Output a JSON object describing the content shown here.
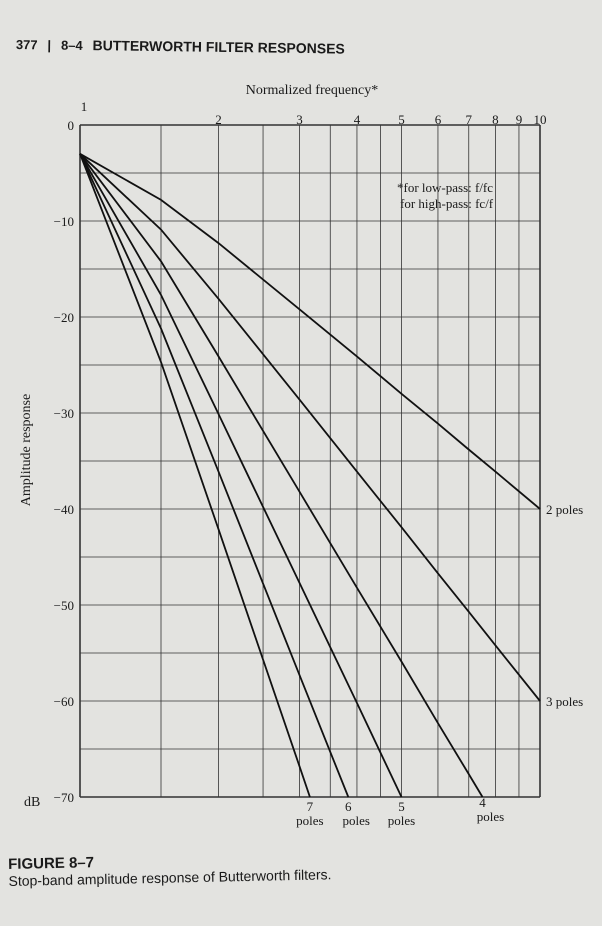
{
  "header": {
    "page_number": "377",
    "section": "8–4",
    "title": "BUTTERWORTH FILTER RESPONSES"
  },
  "caption": {
    "figure_label": "FIGURE 8–7",
    "text": "Stop-band amplitude response of Butterworth filters."
  },
  "chart_data": {
    "type": "line",
    "title": "",
    "xlabel": "Normalized frequency*",
    "ylabel": "Amplitude response",
    "y_unit_label": "dB",
    "x_scale": "log",
    "xlim": [
      1,
      10
    ],
    "ylim": [
      -70,
      0
    ],
    "grid": true,
    "x_gridlines": [
      1,
      1.5,
      2,
      2.5,
      3,
      3.5,
      4,
      4.5,
      5,
      6,
      7,
      8,
      9,
      10
    ],
    "x_ticks": [
      {
        "value": 1,
        "label": "1"
      },
      {
        "value": 2,
        "label": "2"
      },
      {
        "value": 3,
        "label": "3"
      },
      {
        "value": 4,
        "label": "4"
      },
      {
        "value": 5,
        "label": "5"
      },
      {
        "value": 6,
        "label": "6"
      },
      {
        "value": 7,
        "label": "7"
      },
      {
        "value": 8,
        "label": "8"
      },
      {
        "value": 9,
        "label": "9"
      },
      {
        "value": 10,
        "label": "10"
      }
    ],
    "y_gridlines": [
      0,
      -5,
      -10,
      -15,
      -20,
      -25,
      -30,
      -35,
      -40,
      -45,
      -50,
      -55,
      -60,
      -65,
      -70
    ],
    "y_ticks": [
      {
        "value": 0,
        "label": "0"
      },
      {
        "value": -10,
        "label": "−10"
      },
      {
        "value": -20,
        "label": "−20"
      },
      {
        "value": -30,
        "label": "−30"
      },
      {
        "value": -40,
        "label": "−40"
      },
      {
        "value": -50,
        "label": "−50"
      },
      {
        "value": -60,
        "label": "−60"
      },
      {
        "value": -70,
        "label": "−70"
      }
    ],
    "footnote": {
      "line1": "*for low-pass: f/fc",
      "line2": "for high-pass: fc/f"
    },
    "series": [
      {
        "name": "2 poles",
        "number": "2",
        "unit": "poles",
        "x": [
          1,
          1.5,
          2,
          3,
          4,
          5,
          6,
          7,
          8,
          10
        ],
        "y": [
          -3.0,
          -7.8,
          -12.3,
          -19.2,
          -24.1,
          -28.0,
          -31.1,
          -33.8,
          -36.1,
          -40.0
        ]
      },
      {
        "name": "3 poles",
        "number": "3",
        "unit": "poles",
        "x": [
          1,
          1.5,
          2,
          3,
          4,
          5,
          6,
          7,
          8,
          10
        ],
        "y": [
          -3.0,
          -10.9,
          -18.1,
          -28.6,
          -36.1,
          -41.9,
          -46.7,
          -50.7,
          -54.2,
          -60.0
        ]
      },
      {
        "name": "4 poles",
        "number": "4",
        "unit": "poles",
        "x": [
          1,
          1.5,
          2,
          3,
          4,
          5,
          6,
          7,
          7.5
        ],
        "y": [
          -3.0,
          -14.2,
          -24.1,
          -38.2,
          -48.2,
          -55.9,
          -62.3,
          -67.6,
          -70.0
        ]
      },
      {
        "name": "5 poles",
        "number": "5",
        "unit": "poles",
        "x": [
          1,
          1.5,
          2,
          3,
          4,
          5
        ],
        "y": [
          -3.0,
          -17.7,
          -30.1,
          -47.7,
          -60.2,
          -70.0
        ]
      },
      {
        "name": "6 poles",
        "number": "6",
        "unit": "poles",
        "x": [
          1,
          1.5,
          2,
          3,
          3.83
        ],
        "y": [
          -3.0,
          -21.2,
          -36.1,
          -57.3,
          -70.0
        ]
      },
      {
        "name": "7 poles",
        "number": "7",
        "unit": "poles",
        "x": [
          1,
          1.5,
          2,
          3,
          3.16
        ],
        "y": [
          -3.0,
          -24.7,
          -42.1,
          -66.8,
          -70.0
        ]
      }
    ]
  }
}
